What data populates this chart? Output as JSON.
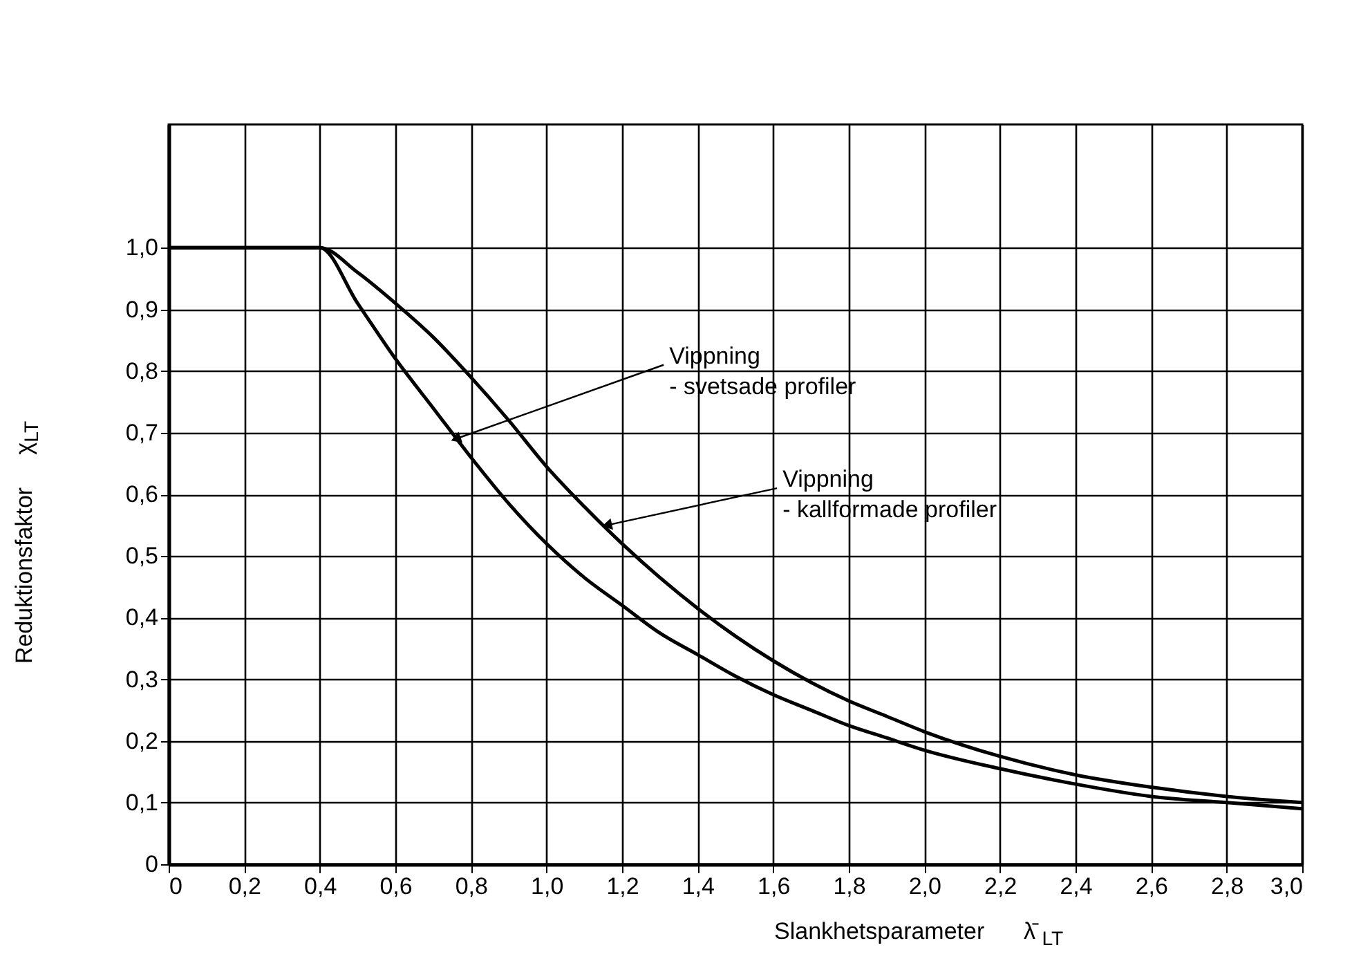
{
  "chart_data": {
    "type": "line",
    "xlabel": "Slankhetsparameter      λ̄ $_{LT}$",
    "ylabel": "Reduktionsfaktor     χ$_{LT}$",
    "xlim": [
      0,
      3.0
    ],
    "ylim": [
      0,
      1.2
    ],
    "xticks": [
      0,
      {
        "value": 0.2,
        "label": "0,2"
      },
      {
        "value": 0.4,
        "label": "0,4"
      },
      {
        "value": 0.6,
        "label": "0,6"
      },
      {
        "value": 0.8,
        "label": "0,8"
      },
      {
        "value": 1.0,
        "label": "1,0"
      },
      {
        "value": 1.2,
        "label": "1,2"
      },
      {
        "value": 1.4,
        "label": "1,4"
      },
      {
        "value": 1.6,
        "label": "1,6"
      },
      {
        "value": 1.8,
        "label": "1,8"
      },
      {
        "value": 2.0,
        "label": "2,0"
      },
      {
        "value": 2.2,
        "label": "2,2"
      },
      {
        "value": 2.4,
        "label": "2,4"
      },
      {
        "value": 2.6,
        "label": "2,6"
      },
      {
        "value": 2.8,
        "label": "2,8"
      },
      {
        "value": 3.0,
        "label": "3,0"
      }
    ],
    "yticks": [
      0,
      {
        "value": 0.1,
        "label": "0,1"
      },
      {
        "value": 0.2,
        "label": "0,2"
      },
      {
        "value": 0.3,
        "label": "0,3"
      },
      {
        "value": 0.4,
        "label": "0,4"
      },
      {
        "value": 0.5,
        "label": "0,5"
      },
      {
        "value": 0.6,
        "label": "0,6"
      },
      {
        "value": 0.7,
        "label": "0,7"
      },
      {
        "value": 0.8,
        "label": "0,8"
      },
      {
        "value": 0.9,
        "label": "0,9"
      },
      {
        "value": 1.0,
        "label": "1,0"
      }
    ],
    "grid": true,
    "series": [
      {
        "color": "#000000",
        "x": [
          0,
          0.4,
          0.5,
          0.6,
          0.7,
          0.8,
          0.9,
          1.0,
          1.1,
          1.2,
          1.3,
          1.4,
          1.5,
          1.6,
          1.7,
          1.8,
          1.9,
          2.0,
          2.2,
          2.4,
          2.6,
          2.8,
          3.0
        ],
        "values": [
          1,
          1,
          0.91,
          0.82,
          0.74,
          0.66,
          0.585,
          0.52,
          0.465,
          0.42,
          0.375,
          0.34,
          0.305,
          0.275,
          0.25,
          0.225,
          0.205,
          0.185,
          0.155,
          0.13,
          0.11,
          0.1,
          0.09
        ]
      },
      {
        "color": "#000000",
        "x": [
          0,
          0.4,
          0.5,
          0.6,
          0.7,
          0.8,
          0.9,
          1.0,
          1.1,
          1.2,
          1.3,
          1.4,
          1.5,
          1.6,
          1.7,
          1.8,
          1.9,
          2.0,
          2.2,
          2.4,
          2.6,
          2.8,
          3.0
        ],
        "values": [
          1,
          1,
          0.96,
          0.91,
          0.855,
          0.79,
          0.72,
          0.645,
          0.58,
          0.52,
          0.465,
          0.415,
          0.37,
          0.33,
          0.295,
          0.265,
          0.24,
          0.215,
          0.175,
          0.145,
          0.125,
          0.11,
          0.1
        ]
      }
    ],
    "annotations": [
      {
        "text": "Vippning\n- svetsade profiler",
        "x": 0.76,
        "y": 0.69
      },
      {
        "text": "Vippning\n- kallformade profiler",
        "x": 1.16,
        "y": 0.55
      }
    ]
  }
}
